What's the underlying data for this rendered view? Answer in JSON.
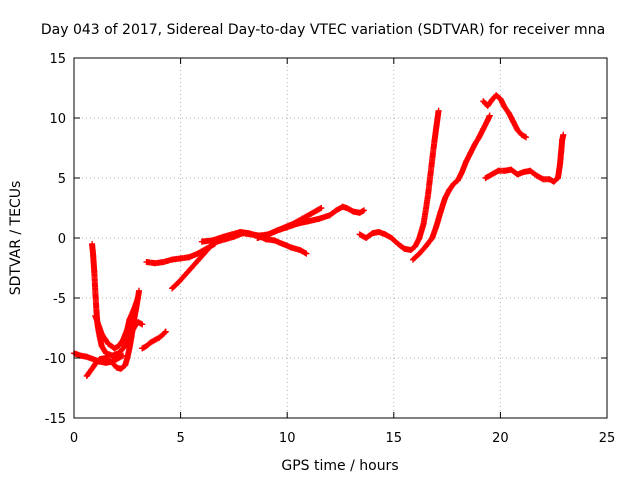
{
  "chart_data": {
    "type": "scatter",
    "title": "Day 043 of 2017, Sidereal Day-to-day VTEC variation (SDTVAR) for receiver mna",
    "xlabel": "GPS time / hours",
    "ylabel": "SDTVAR / TECUs",
    "xlim": [
      0,
      25
    ],
    "ylim": [
      -15,
      15
    ],
    "xticks": [
      0,
      5,
      10,
      15,
      20,
      25
    ],
    "yticks": [
      -15,
      -10,
      -5,
      0,
      5,
      10,
      15
    ],
    "xtick_labels": [
      "0",
      "5",
      "10",
      "15",
      "20",
      "25"
    ],
    "ytick_labels": [
      "-15",
      "-10",
      "-5",
      "0",
      "5",
      "10",
      "15"
    ],
    "grid": true,
    "legend": false,
    "marker": "+",
    "color": "#ff0000",
    "series": [
      {
        "tracks": [
          [
            [
              0.0,
              -9.6
            ],
            [
              0.3,
              -9.8
            ],
            [
              0.6,
              -9.9
            ],
            [
              0.9,
              -10.1
            ],
            [
              1.2,
              -10.3
            ],
            [
              1.5,
              -10.4
            ],
            [
              1.8,
              -10.3
            ],
            [
              2.0,
              -10.1
            ],
            [
              2.3,
              -9.8
            ]
          ],
          [
            [
              0.85,
              -0.5
            ],
            [
              0.9,
              -1.5
            ],
            [
              0.95,
              -2.8
            ],
            [
              1.0,
              -4.5
            ],
            [
              1.05,
              -6.0
            ],
            [
              1.1,
              -7.2
            ],
            [
              1.2,
              -8.2
            ],
            [
              1.3,
              -9.0
            ],
            [
              1.5,
              -9.6
            ],
            [
              1.8,
              -9.8
            ],
            [
              2.1,
              -9.6
            ],
            [
              2.4,
              -9.0
            ],
            [
              2.6,
              -8.2
            ],
            [
              2.8,
              -7.5
            ],
            [
              3.0,
              -7.0
            ],
            [
              3.2,
              -7.2
            ]
          ],
          [
            [
              0.6,
              -11.5
            ],
            [
              0.8,
              -11.0
            ],
            [
              1.0,
              -10.5
            ],
            [
              1.2,
              -10.1
            ],
            [
              1.5,
              -10.0
            ],
            [
              1.8,
              -10.4
            ],
            [
              2.0,
              -10.8
            ],
            [
              2.2,
              -10.9
            ],
            [
              2.4,
              -10.6
            ],
            [
              2.5,
              -10.0
            ],
            [
              2.6,
              -9.2
            ],
            [
              2.7,
              -8.2
            ],
            [
              2.8,
              -7.0
            ],
            [
              2.9,
              -6.0
            ],
            [
              3.0,
              -5.0
            ],
            [
              3.05,
              -4.4
            ]
          ],
          [
            [
              1.0,
              -6.5
            ],
            [
              1.3,
              -8.0
            ],
            [
              1.6,
              -8.8
            ],
            [
              1.9,
              -9.2
            ],
            [
              2.1,
              -9.0
            ],
            [
              2.3,
              -8.5
            ],
            [
              2.5,
              -7.6
            ],
            [
              2.6,
              -6.8
            ],
            [
              2.8,
              -6.0
            ],
            [
              3.0,
              -5.0
            ]
          ],
          [
            [
              3.2,
              -9.2
            ],
            [
              3.4,
              -9.0
            ],
            [
              3.6,
              -8.7
            ],
            [
              3.8,
              -8.5
            ],
            [
              4.0,
              -8.3
            ],
            [
              4.2,
              -8.0
            ],
            [
              4.3,
              -7.8
            ]
          ],
          [
            [
              3.4,
              -2.0
            ],
            [
              3.8,
              -2.1
            ],
            [
              4.2,
              -2.0
            ],
            [
              4.6,
              -1.8
            ],
            [
              5.0,
              -1.7
            ],
            [
              5.4,
              -1.6
            ],
            [
              5.8,
              -1.3
            ],
            [
              6.2,
              -0.9
            ],
            [
              6.6,
              -0.5
            ]
          ],
          [
            [
              4.6,
              -4.2
            ],
            [
              4.9,
              -3.7
            ],
            [
              5.2,
              -3.1
            ],
            [
              5.5,
              -2.5
            ],
            [
              5.8,
              -1.9
            ],
            [
              6.1,
              -1.3
            ],
            [
              6.4,
              -0.7
            ],
            [
              6.7,
              -0.3
            ],
            [
              7.1,
              -0.1
            ],
            [
              7.5,
              0.1
            ],
            [
              7.9,
              0.4
            ],
            [
              8.3,
              0.3
            ],
            [
              8.7,
              0.2
            ],
            [
              9.1,
              0.3
            ],
            [
              9.5,
              0.6
            ],
            [
              9.9,
              0.9
            ],
            [
              10.3,
              1.2
            ],
            [
              10.7,
              1.6
            ],
            [
              11.1,
              2.0
            ],
            [
              11.4,
              2.3
            ],
            [
              11.6,
              2.5
            ]
          ],
          [
            [
              6.0,
              -0.3
            ],
            [
              6.5,
              -0.2
            ],
            [
              7.0,
              0.1
            ],
            [
              7.4,
              0.3
            ],
            [
              7.8,
              0.5
            ],
            [
              8.2,
              0.4
            ],
            [
              8.6,
              0.2
            ],
            [
              9.0,
              -0.1
            ],
            [
              9.4,
              -0.2
            ],
            [
              9.8,
              -0.5
            ],
            [
              10.2,
              -0.8
            ],
            [
              10.6,
              -1.0
            ],
            [
              10.9,
              -1.3
            ]
          ],
          [
            [
              8.6,
              0.0
            ],
            [
              9.0,
              0.2
            ],
            [
              9.5,
              0.6
            ],
            [
              10.0,
              0.9
            ],
            [
              10.5,
              1.2
            ],
            [
              11.0,
              1.4
            ],
            [
              11.5,
              1.6
            ],
            [
              12.0,
              1.9
            ],
            [
              12.3,
              2.3
            ],
            [
              12.6,
              2.6
            ],
            [
              12.8,
              2.5
            ],
            [
              13.1,
              2.2
            ],
            [
              13.4,
              2.1
            ],
            [
              13.6,
              2.3
            ]
          ],
          [
            [
              13.4,
              0.3
            ],
            [
              13.7,
              0.0
            ],
            [
              14.0,
              0.4
            ],
            [
              14.3,
              0.5
            ],
            [
              14.6,
              0.3
            ],
            [
              14.9,
              0.0
            ],
            [
              15.2,
              -0.5
            ],
            [
              15.5,
              -0.9
            ],
            [
              15.8,
              -1.0
            ],
            [
              16.0,
              -0.7
            ],
            [
              16.2,
              0.0
            ],
            [
              16.4,
              1.2
            ],
            [
              16.6,
              3.5
            ],
            [
              16.7,
              5.0
            ],
            [
              16.8,
              6.5
            ],
            [
              16.9,
              8.0
            ],
            [
              17.0,
              9.3
            ],
            [
              17.1,
              10.6
            ]
          ],
          [
            [
              15.9,
              -1.8
            ],
            [
              16.2,
              -1.3
            ],
            [
              16.5,
              -0.7
            ],
            [
              16.8,
              0.0
            ],
            [
              17.0,
              1.0
            ],
            [
              17.2,
              2.2
            ],
            [
              17.4,
              3.3
            ],
            [
              17.6,
              4.0
            ],
            [
              17.8,
              4.5
            ],
            [
              18.0,
              4.8
            ],
            [
              18.2,
              5.5
            ],
            [
              18.4,
              6.4
            ],
            [
              18.6,
              7.1
            ],
            [
              18.8,
              7.8
            ],
            [
              19.0,
              8.4
            ],
            [
              19.2,
              9.1
            ],
            [
              19.4,
              9.8
            ],
            [
              19.5,
              10.2
            ]
          ],
          [
            [
              19.2,
              11.4
            ],
            [
              19.4,
              11.0
            ],
            [
              19.6,
              11.5
            ],
            [
              19.8,
              11.9
            ],
            [
              20.0,
              11.6
            ],
            [
              20.2,
              10.9
            ],
            [
              20.4,
              10.4
            ],
            [
              20.6,
              9.7
            ],
            [
              20.8,
              9.0
            ],
            [
              21.0,
              8.6
            ],
            [
              21.2,
              8.4
            ]
          ],
          [
            [
              19.3,
              5.0
            ],
            [
              19.6,
              5.3
            ],
            [
              19.9,
              5.6
            ],
            [
              20.2,
              5.6
            ],
            [
              20.5,
              5.7
            ],
            [
              20.8,
              5.3
            ],
            [
              21.1,
              5.5
            ],
            [
              21.4,
              5.6
            ],
            [
              21.7,
              5.2
            ],
            [
              22.0,
              4.9
            ],
            [
              22.3,
              4.9
            ],
            [
              22.5,
              4.7
            ],
            [
              22.7,
              5.0
            ],
            [
              22.8,
              6.2
            ],
            [
              22.85,
              7.2
            ],
            [
              22.9,
              8.2
            ],
            [
              22.95,
              8.6
            ]
          ]
        ]
      }
    ]
  }
}
